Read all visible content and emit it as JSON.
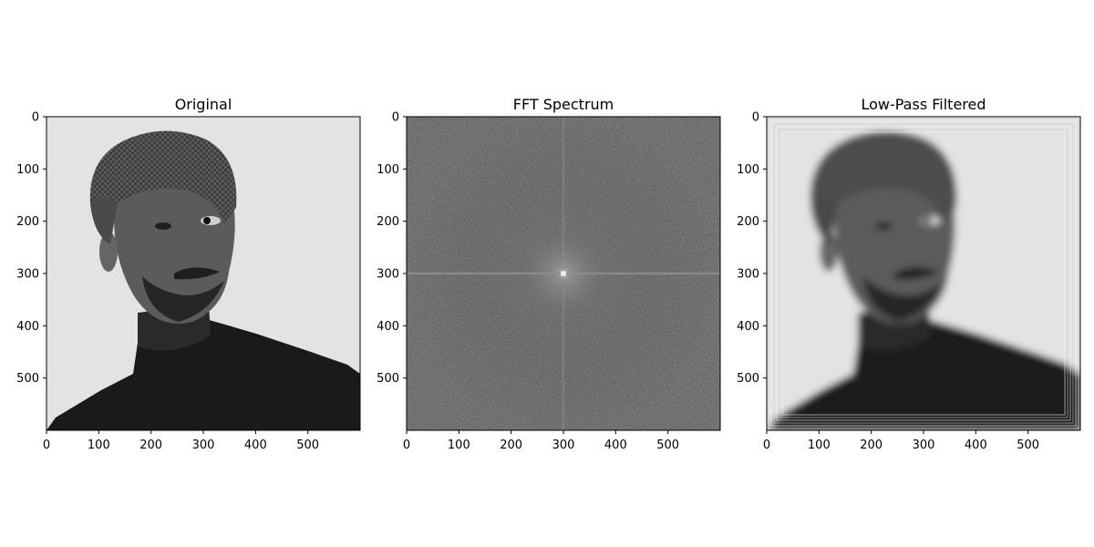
{
  "chart_data": [
    {
      "type": "image",
      "title": "Original",
      "content": "grayscale photo",
      "x_ticks": [
        0,
        100,
        200,
        300,
        400,
        500
      ],
      "y_ticks": [
        0,
        100,
        200,
        300,
        400,
        500
      ],
      "xlim": [
        0,
        600
      ],
      "ylim": [
        600,
        0
      ]
    },
    {
      "type": "image",
      "title": "FFT Spectrum",
      "content": "magnitude spectrum",
      "x_ticks": [
        0,
        100,
        200,
        300,
        400,
        500
      ],
      "y_ticks": [
        0,
        100,
        200,
        300,
        400,
        500
      ],
      "xlim": [
        0,
        600
      ],
      "ylim": [
        600,
        0
      ]
    },
    {
      "type": "image",
      "title": "Low-Pass Filtered",
      "content": "blurred grayscale photo",
      "x_ticks": [
        0,
        100,
        200,
        300,
        400,
        500
      ],
      "y_ticks": [
        0,
        100,
        200,
        300,
        400,
        500
      ],
      "xlim": [
        0,
        600
      ],
      "ylim": [
        600,
        0
      ]
    }
  ]
}
